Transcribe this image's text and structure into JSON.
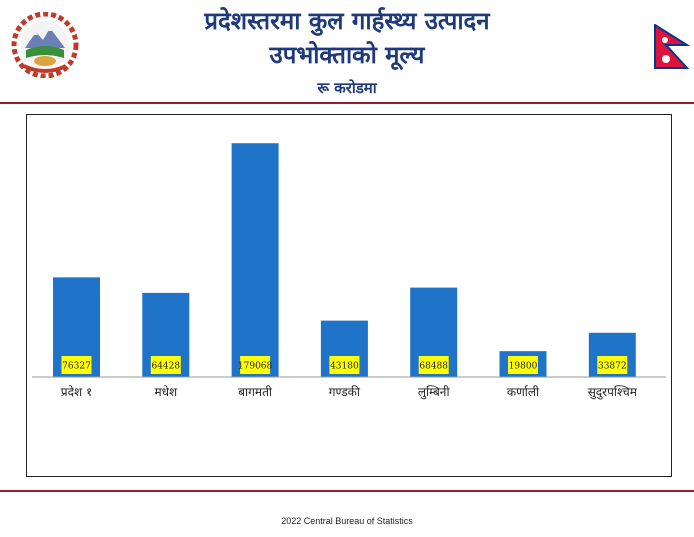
{
  "header": {
    "title_line1": "प्रदेशस्तरमा कुल गार्हस्थ्य उत्पादन",
    "title_line2": "उपभोक्ताको मूल्य",
    "unit_line": "रू करोडमा"
  },
  "colors": {
    "bar": "#1f73c8",
    "label_box": "#ffff00",
    "rule": "#9b1b30",
    "title": "#1f3a7a"
  },
  "chart_data": {
    "type": "bar",
    "categories": [
      "प्रदेश १",
      "मधेश",
      "बागमती",
      "गण्डकी",
      "लुम्बिनी",
      "कर्णाली",
      "सुदुरपश्चिम"
    ],
    "values": [
      76327,
      64428,
      179068,
      43180,
      68488,
      19800,
      33872
    ],
    "data_labels": [
      "76327",
      "64428",
      "179068",
      "43180",
      "68488",
      "19800",
      "33872"
    ],
    "title": "",
    "xlabel": "",
    "ylabel": "",
    "ylim": [
      0,
      180000
    ],
    "grid": false,
    "legend": "none"
  },
  "footer": {
    "text": "2022 Central  Bureau of Statistics"
  }
}
